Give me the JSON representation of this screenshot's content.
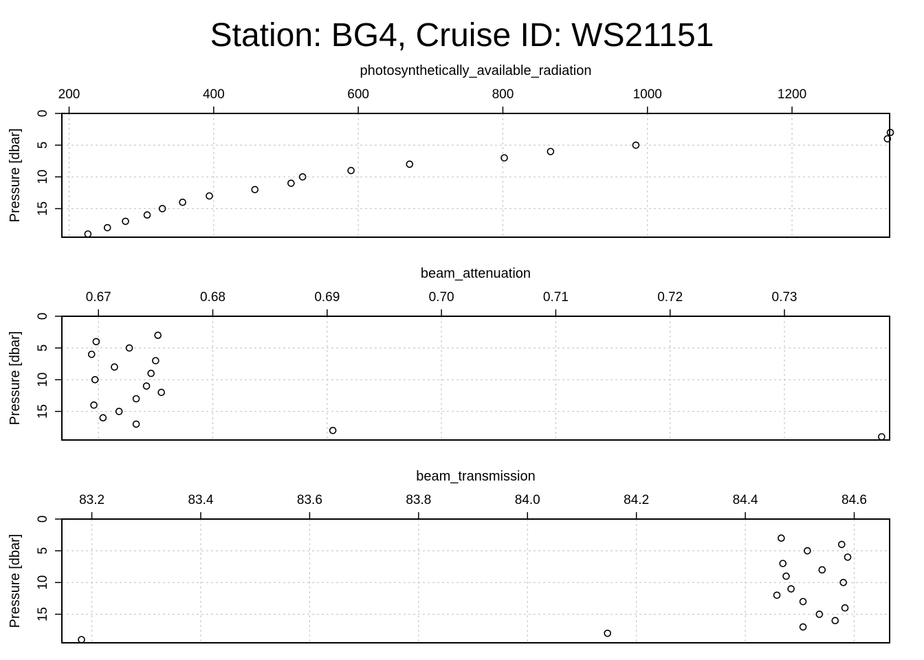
{
  "title": "Station: BG4, Cruise ID: WS21151",
  "chart_data": [
    {
      "type": "scatter",
      "title": "",
      "xlabel": "photosynthetically_available_radiation",
      "ylabel": "Pressure [dbar]",
      "xlim": [
        190,
        1335
      ],
      "ylim": [
        19.5,
        0
      ],
      "xticks": [
        200,
        400,
        600,
        800,
        1000,
        1200
      ],
      "xtick_labels": [
        "200",
        "400",
        "600",
        "800",
        "1000",
        "1200"
      ],
      "yticks": [
        0,
        5,
        10,
        15
      ],
      "ytick_labels": [
        "0",
        "5",
        "10",
        "15"
      ],
      "grid": true,
      "x_axis_position": "top",
      "y_reversed": true,
      "points": [
        {
          "x": 1336,
          "y": 3
        },
        {
          "x": 1332,
          "y": 4
        },
        {
          "x": 984,
          "y": 5
        },
        {
          "x": 866,
          "y": 6
        },
        {
          "x": 802,
          "y": 7
        },
        {
          "x": 671,
          "y": 8
        },
        {
          "x": 590,
          "y": 9
        },
        {
          "x": 523,
          "y": 10
        },
        {
          "x": 507,
          "y": 11
        },
        {
          "x": 457,
          "y": 12
        },
        {
          "x": 394,
          "y": 13
        },
        {
          "x": 357,
          "y": 14
        },
        {
          "x": 329,
          "y": 15
        },
        {
          "x": 308,
          "y": 16
        },
        {
          "x": 278,
          "y": 17
        },
        {
          "x": 253,
          "y": 18
        },
        {
          "x": 226,
          "y": 19
        }
      ]
    },
    {
      "type": "scatter",
      "title": "",
      "xlabel": "beam_attenuation",
      "ylabel": "Pressure [dbar]",
      "xlim": [
        0.6668,
        0.7392
      ],
      "ylim": [
        19.5,
        0
      ],
      "xticks": [
        0.67,
        0.68,
        0.69,
        0.7,
        0.71,
        0.72,
        0.73
      ],
      "xtick_labels": [
        "0.67",
        "0.68",
        "0.69",
        "0.70",
        "0.71",
        "0.72",
        "0.73"
      ],
      "yticks": [
        0,
        5,
        10,
        15
      ],
      "ytick_labels": [
        "0",
        "5",
        "10",
        "15"
      ],
      "grid": true,
      "x_axis_position": "top",
      "y_reversed": true,
      "points": [
        {
          "x": 0.6752,
          "y": 3
        },
        {
          "x": 0.6698,
          "y": 4
        },
        {
          "x": 0.6727,
          "y": 5
        },
        {
          "x": 0.6694,
          "y": 6
        },
        {
          "x": 0.675,
          "y": 7
        },
        {
          "x": 0.6714,
          "y": 8
        },
        {
          "x": 0.6746,
          "y": 9
        },
        {
          "x": 0.6697,
          "y": 10
        },
        {
          "x": 0.6742,
          "y": 11
        },
        {
          "x": 0.6755,
          "y": 12
        },
        {
          "x": 0.6733,
          "y": 13
        },
        {
          "x": 0.6696,
          "y": 14
        },
        {
          "x": 0.6718,
          "y": 15
        },
        {
          "x": 0.6704,
          "y": 16
        },
        {
          "x": 0.6733,
          "y": 17
        },
        {
          "x": 0.6905,
          "y": 18
        },
        {
          "x": 0.7385,
          "y": 19
        }
      ]
    },
    {
      "type": "scatter",
      "title": "",
      "xlabel": "beam_transmission",
      "ylabel": "Pressure [dbar]",
      "xlim": [
        83.145,
        84.665
      ],
      "ylim": [
        19.5,
        0
      ],
      "xticks": [
        83.2,
        83.4,
        83.6,
        83.8,
        84.0,
        84.2,
        84.4,
        84.6
      ],
      "xtick_labels": [
        "83.2",
        "83.4",
        "83.6",
        "83.8",
        "84.0",
        "84.2",
        "84.4",
        "84.6"
      ],
      "yticks": [
        0,
        5,
        10,
        15
      ],
      "ytick_labels": [
        "0",
        "5",
        "10",
        "15"
      ],
      "grid": true,
      "x_axis_position": "top",
      "y_reversed": true,
      "points": [
        {
          "x": 84.466,
          "y": 3
        },
        {
          "x": 84.577,
          "y": 4
        },
        {
          "x": 84.514,
          "y": 5
        },
        {
          "x": 84.588,
          "y": 6
        },
        {
          "x": 84.469,
          "y": 7
        },
        {
          "x": 84.541,
          "y": 8
        },
        {
          "x": 84.475,
          "y": 9
        },
        {
          "x": 84.58,
          "y": 10
        },
        {
          "x": 84.484,
          "y": 11
        },
        {
          "x": 84.458,
          "y": 12
        },
        {
          "x": 84.506,
          "y": 13
        },
        {
          "x": 84.583,
          "y": 14
        },
        {
          "x": 84.536,
          "y": 15
        },
        {
          "x": 84.565,
          "y": 16
        },
        {
          "x": 84.506,
          "y": 17
        },
        {
          "x": 84.147,
          "y": 18
        },
        {
          "x": 83.181,
          "y": 19
        }
      ]
    }
  ]
}
